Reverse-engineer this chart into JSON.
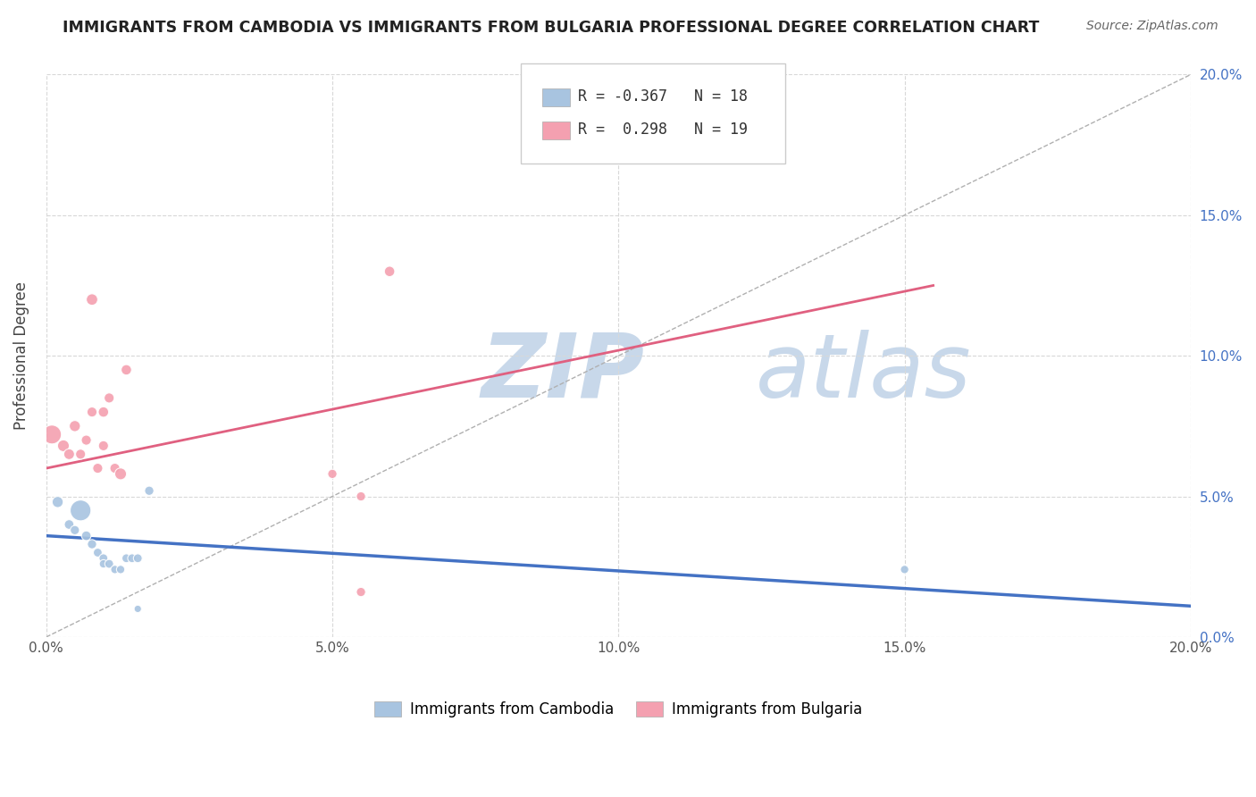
{
  "title": "IMMIGRANTS FROM CAMBODIA VS IMMIGRANTS FROM BULGARIA PROFESSIONAL DEGREE CORRELATION CHART",
  "source": "Source: ZipAtlas.com",
  "ylabel": "Professional Degree",
  "xlim": [
    0.0,
    0.2
  ],
  "ylim": [
    0.0,
    0.2
  ],
  "xtick_vals": [
    0.0,
    0.05,
    0.1,
    0.15,
    0.2
  ],
  "ytick_vals": [
    0.0,
    0.05,
    0.1,
    0.15,
    0.2
  ],
  "legend_r_blue": "-0.367",
  "legend_n_blue": "18",
  "legend_r_pink": "0.298",
  "legend_n_pink": "19",
  "blue_color": "#a8c4e0",
  "pink_color": "#f4a0b0",
  "blue_line_color": "#4472c4",
  "pink_line_color": "#e06080",
  "dashed_line_color": "#b0b0b0",
  "watermark_zip_color": "#c8d8ea",
  "watermark_atlas_color": "#c8d8ea",
  "background_color": "#ffffff",
  "grid_color": "#d8d8d8",
  "blue_scatter_x": [
    0.002,
    0.004,
    0.005,
    0.006,
    0.007,
    0.008,
    0.009,
    0.01,
    0.01,
    0.011,
    0.012,
    0.013,
    0.014,
    0.015,
    0.016,
    0.016,
    0.018,
    0.15
  ],
  "blue_scatter_y": [
    0.048,
    0.04,
    0.038,
    0.045,
    0.036,
    0.033,
    0.03,
    0.028,
    0.026,
    0.026,
    0.024,
    0.024,
    0.028,
    0.028,
    0.028,
    0.01,
    0.052,
    0.024
  ],
  "blue_scatter_size": [
    80,
    60,
    55,
    280,
    60,
    55,
    50,
    50,
    45,
    50,
    45,
    45,
    50,
    50,
    50,
    35,
    55,
    45
  ],
  "pink_scatter_x": [
    0.001,
    0.003,
    0.004,
    0.005,
    0.006,
    0.007,
    0.008,
    0.008,
    0.009,
    0.01,
    0.01,
    0.011,
    0.012,
    0.013,
    0.014,
    0.05,
    0.055,
    0.055,
    0.06
  ],
  "pink_scatter_y": [
    0.072,
    0.068,
    0.065,
    0.075,
    0.065,
    0.07,
    0.08,
    0.12,
    0.06,
    0.08,
    0.068,
    0.085,
    0.06,
    0.058,
    0.095,
    0.058,
    0.05,
    0.016,
    0.13
  ],
  "pink_scatter_size": [
    230,
    90,
    75,
    80,
    65,
    65,
    65,
    85,
    65,
    70,
    65,
    65,
    65,
    90,
    70,
    55,
    55,
    55,
    70
  ],
  "blue_line_x": [
    0.0,
    0.2
  ],
  "blue_line_y": [
    0.036,
    0.011
  ],
  "pink_line_x": [
    0.0,
    0.155
  ],
  "pink_line_y": [
    0.06,
    0.125
  ],
  "dashed_line_x": [
    0.0,
    0.2
  ],
  "dashed_line_y": [
    0.0,
    0.2
  ]
}
